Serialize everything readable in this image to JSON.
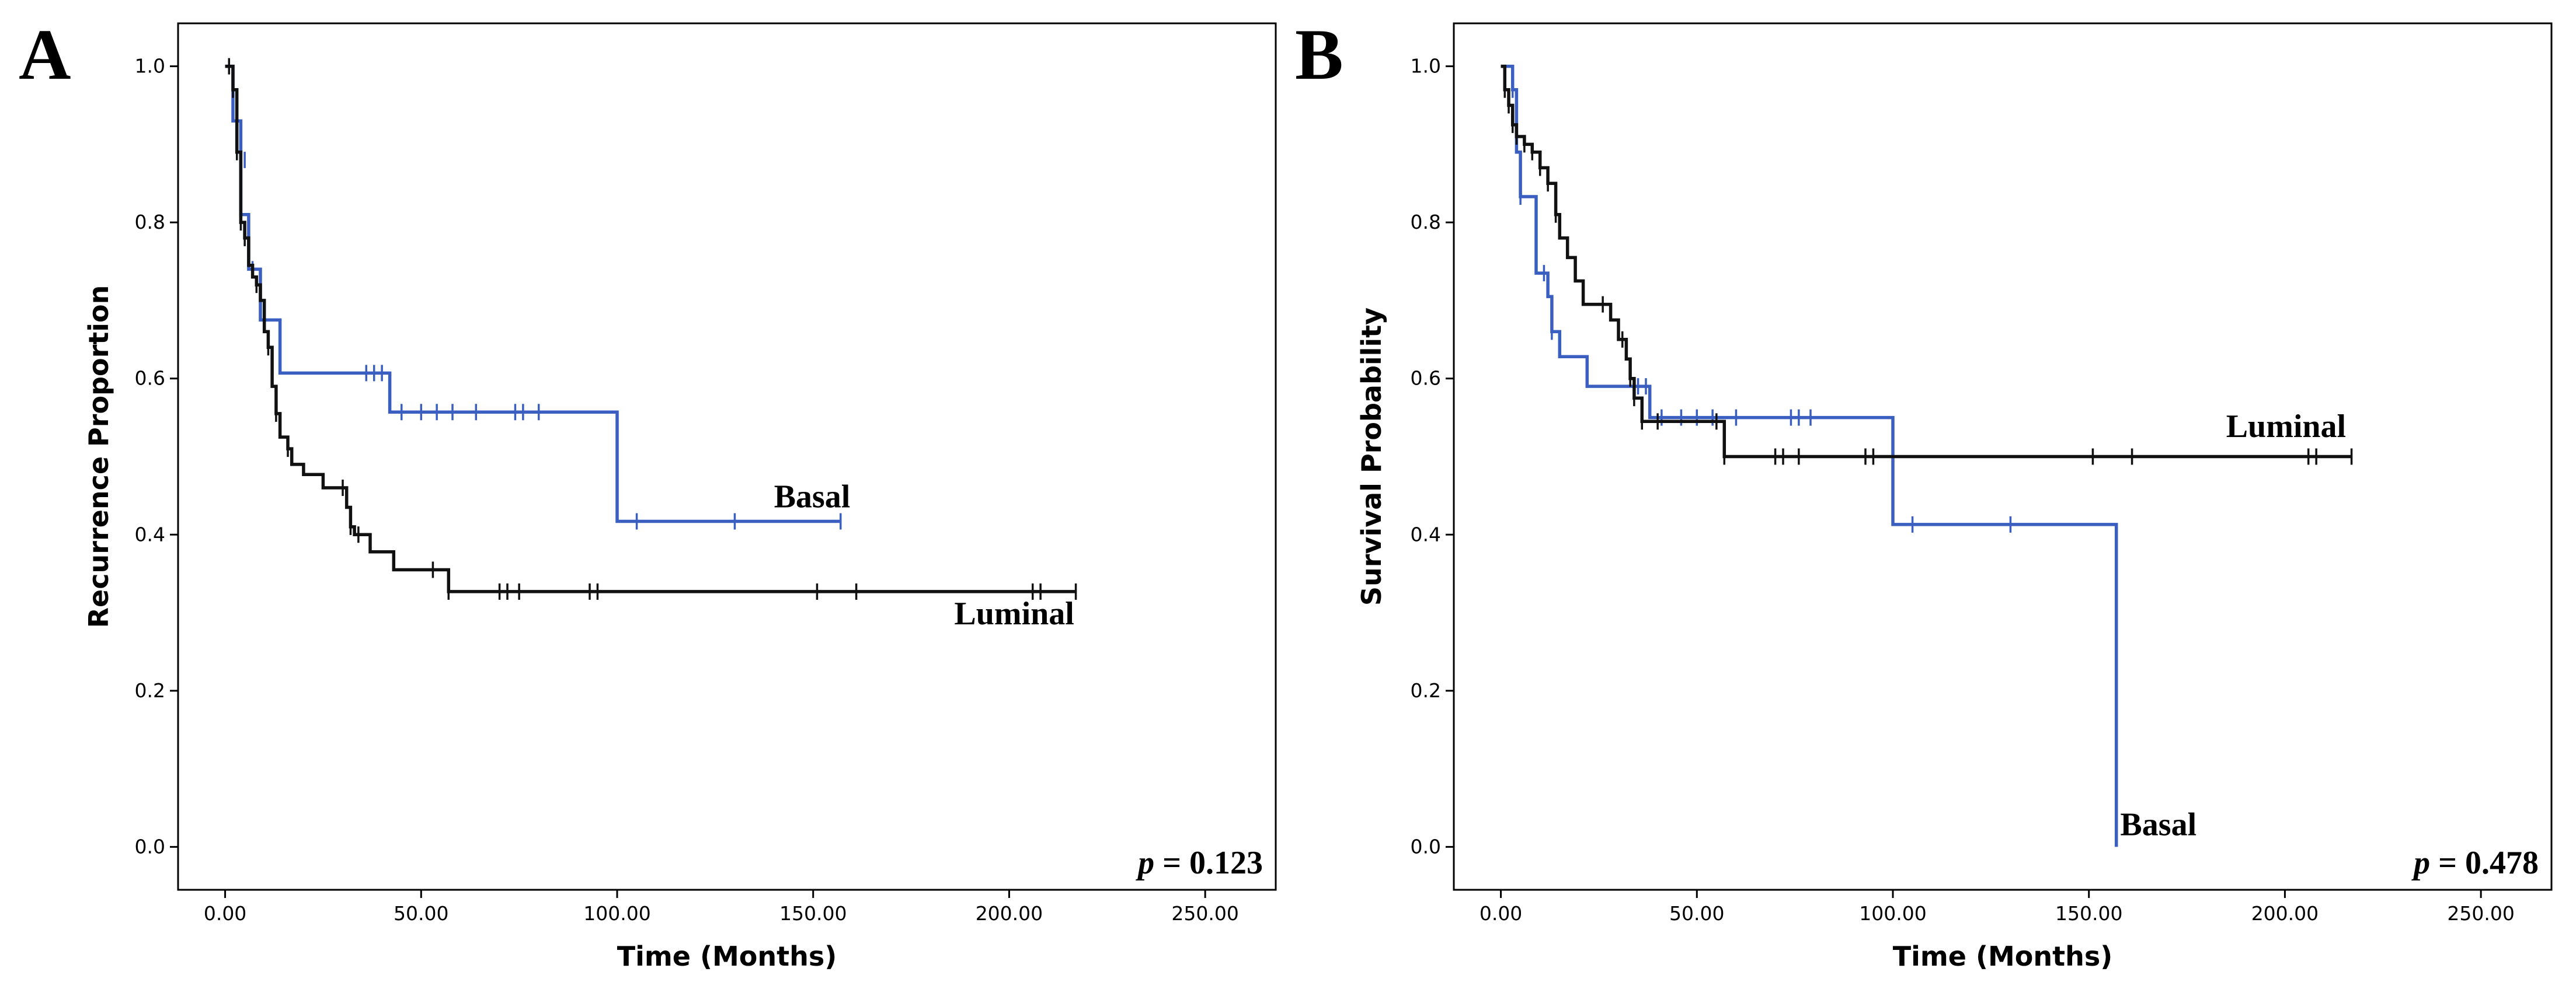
{
  "chart_data": [
    {
      "type": "line",
      "subtype": "kaplan-meier step plot",
      "panel_label": "A",
      "xlabel": "Time (Months)",
      "ylabel": "Recurrence Proportion",
      "xlim": [
        -12,
        268
      ],
      "ylim": [
        -0.055,
        1.055
      ],
      "xticks": [
        0,
        50,
        100,
        150,
        200,
        250
      ],
      "xtick_labels": [
        "0.00",
        "50.00",
        "100.00",
        "150.00",
        "200.00",
        "250.00"
      ],
      "yticks": [
        0,
        0.2,
        0.4,
        0.6,
        0.8,
        1.0
      ],
      "ytick_labels": [
        "0.0",
        "0.2",
        "0.4",
        "0.6",
        "0.8",
        "1.0"
      ],
      "p_prefix": "p",
      "p_value": "= 0.123",
      "series": [
        {
          "name": "Basal",
          "color": "#3a5fc0",
          "label_x": 140,
          "label_y": 0.435,
          "steps": [
            [
              0,
              1.0
            ],
            [
              2,
              0.93
            ],
            [
              4,
              0.81
            ],
            [
              6,
              0.74
            ],
            [
              9,
              0.675
            ],
            [
              14,
              0.607
            ],
            [
              42,
              0.557
            ],
            [
              100,
              0.417
            ],
            [
              157,
              0.417
            ]
          ],
          "censors": [
            [
              3,
              0.93
            ],
            [
              5,
              0.88
            ],
            [
              7,
              0.74
            ],
            [
              36,
              0.607
            ],
            [
              38,
              0.607
            ],
            [
              40,
              0.607
            ],
            [
              45,
              0.557
            ],
            [
              50,
              0.557
            ],
            [
              54,
              0.557
            ],
            [
              58,
              0.557
            ],
            [
              64,
              0.557
            ],
            [
              74,
              0.557
            ],
            [
              76,
              0.557
            ],
            [
              80,
              0.557
            ],
            [
              105,
              0.417
            ],
            [
              130,
              0.417
            ],
            [
              157,
              0.417
            ]
          ]
        },
        {
          "name": "Luminal",
          "color": "#111111",
          "label_x": 186,
          "label_y": 0.285,
          "steps": [
            [
              0,
              1.0
            ],
            [
              2,
              0.97
            ],
            [
              3,
              0.89
            ],
            [
              4,
              0.8
            ],
            [
              5,
              0.78
            ],
            [
              6,
              0.745
            ],
            [
              7,
              0.73
            ],
            [
              8,
              0.72
            ],
            [
              9,
              0.7
            ],
            [
              10,
              0.66
            ],
            [
              11,
              0.64
            ],
            [
              12,
              0.59
            ],
            [
              13,
              0.555
            ],
            [
              14,
              0.525
            ],
            [
              16,
              0.51
            ],
            [
              17,
              0.49
            ],
            [
              20,
              0.477
            ],
            [
              25,
              0.46
            ],
            [
              31,
              0.435
            ],
            [
              32,
              0.41
            ],
            [
              33,
              0.4
            ],
            [
              37,
              0.378
            ],
            [
              43,
              0.355
            ],
            [
              55,
              0.355
            ],
            [
              57,
              0.327
            ],
            [
              217,
              0.327
            ]
          ],
          "censors": [
            [
              1,
              1.0
            ],
            [
              2,
              0.97
            ],
            [
              3,
              0.89
            ],
            [
              4,
              0.8
            ],
            [
              5,
              0.78
            ],
            [
              8,
              0.72
            ],
            [
              11,
              0.64
            ],
            [
              13,
              0.555
            ],
            [
              16,
              0.51
            ],
            [
              30,
              0.46
            ],
            [
              32,
              0.41
            ],
            [
              34,
              0.4
            ],
            [
              53,
              0.355
            ],
            [
              57,
              0.327
            ],
            [
              70,
              0.327
            ],
            [
              72,
              0.327
            ],
            [
              75,
              0.327
            ],
            [
              93,
              0.327
            ],
            [
              95,
              0.327
            ],
            [
              151,
              0.327
            ],
            [
              161,
              0.327
            ],
            [
              206,
              0.327
            ],
            [
              208,
              0.327
            ],
            [
              217,
              0.327
            ]
          ]
        }
      ]
    },
    {
      "type": "line",
      "subtype": "kaplan-meier step plot",
      "panel_label": "B",
      "xlabel": "Time (Months)",
      "ylabel": "Survival Probability",
      "xlim": [
        -12,
        268
      ],
      "ylim": [
        -0.055,
        1.055
      ],
      "xticks": [
        0,
        50,
        100,
        150,
        200,
        250
      ],
      "xtick_labels": [
        "0.00",
        "50.00",
        "100.00",
        "150.00",
        "200.00",
        "250.00"
      ],
      "yticks": [
        0,
        0.2,
        0.4,
        0.6,
        0.8,
        1.0
      ],
      "ytick_labels": [
        "0.0",
        "0.2",
        "0.4",
        "0.6",
        "0.8",
        "1.0"
      ],
      "p_prefix": "p",
      "p_value": "= 0.478",
      "series": [
        {
          "name": "Basal",
          "color": "#3a5fc0",
          "label_x": 158,
          "label_y": 0.015,
          "steps": [
            [
              0,
              1.0
            ],
            [
              3,
              0.97
            ],
            [
              4,
              0.89
            ],
            [
              5,
              0.833
            ],
            [
              8,
              0.833
            ],
            [
              9,
              0.735
            ],
            [
              11,
              0.735
            ],
            [
              12,
              0.705
            ],
            [
              13,
              0.66
            ],
            [
              15,
              0.628
            ],
            [
              22,
              0.59
            ],
            [
              38,
              0.55
            ],
            [
              100,
              0.413
            ],
            [
              157,
              0.413
            ],
            [
              157,
              0.0
            ]
          ],
          "censors": [
            [
              3,
              0.97
            ],
            [
              5,
              0.833
            ],
            [
              11,
              0.735
            ],
            [
              13,
              0.66
            ],
            [
              35,
              0.59
            ],
            [
              37,
              0.59
            ],
            [
              41,
              0.55
            ],
            [
              46,
              0.55
            ],
            [
              50,
              0.55
            ],
            [
              54,
              0.55
            ],
            [
              60,
              0.55
            ],
            [
              74,
              0.55
            ],
            [
              76,
              0.55
            ],
            [
              79,
              0.55
            ],
            [
              105,
              0.413
            ],
            [
              130,
              0.413
            ]
          ]
        },
        {
          "name": "Luminal",
          "color": "#111111",
          "label_x": 185,
          "label_y": 0.525,
          "steps": [
            [
              0,
              1.0
            ],
            [
              1,
              0.97
            ],
            [
              2,
              0.95
            ],
            [
              3,
              0.925
            ],
            [
              4,
              0.91
            ],
            [
              6,
              0.9
            ],
            [
              8,
              0.89
            ],
            [
              10,
              0.87
            ],
            [
              12,
              0.85
            ],
            [
              14,
              0.81
            ],
            [
              15,
              0.78
            ],
            [
              17,
              0.755
            ],
            [
              19,
              0.725
            ],
            [
              21,
              0.695
            ],
            [
              28,
              0.675
            ],
            [
              30,
              0.65
            ],
            [
              32,
              0.625
            ],
            [
              33,
              0.6
            ],
            [
              34,
              0.575
            ],
            [
              36,
              0.545
            ],
            [
              55,
              0.545
            ],
            [
              57,
              0.5
            ],
            [
              217,
              0.5
            ]
          ],
          "censors": [
            [
              1,
              0.97
            ],
            [
              2,
              0.95
            ],
            [
              3,
              0.925
            ],
            [
              4,
              0.91
            ],
            [
              6,
              0.9
            ],
            [
              8,
              0.89
            ],
            [
              10,
              0.87
            ],
            [
              12,
              0.85
            ],
            [
              14,
              0.81
            ],
            [
              26,
              0.695
            ],
            [
              31,
              0.65
            ],
            [
              33,
              0.6
            ],
            [
              34,
              0.575
            ],
            [
              36,
              0.545
            ],
            [
              40,
              0.545
            ],
            [
              55,
              0.545
            ],
            [
              57,
              0.5
            ],
            [
              70,
              0.5
            ],
            [
              72,
              0.5
            ],
            [
              76,
              0.5
            ],
            [
              93,
              0.5
            ],
            [
              95,
              0.5
            ],
            [
              151,
              0.5
            ],
            [
              161,
              0.5
            ],
            [
              206,
              0.5
            ],
            [
              208,
              0.5
            ],
            [
              217,
              0.5
            ]
          ]
        }
      ]
    }
  ]
}
